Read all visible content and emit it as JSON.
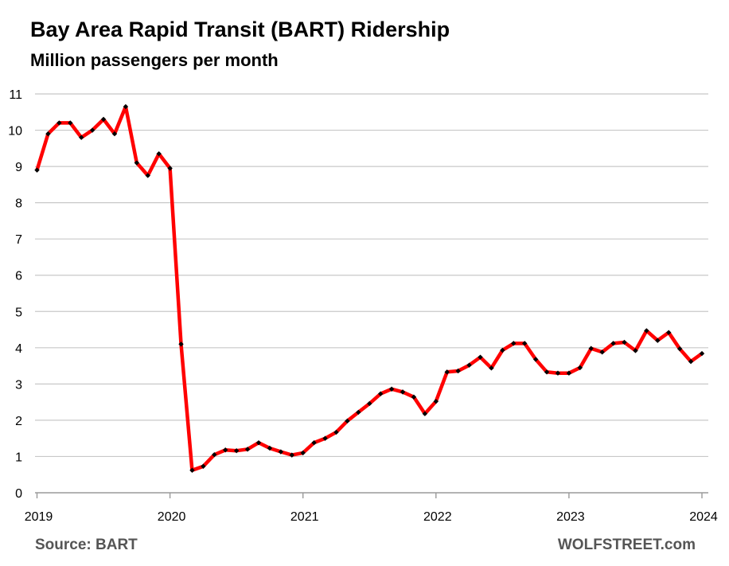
{
  "header": {
    "title": "Bay Area Rapid Transit (BART) Ridership",
    "subtitle": "Million passengers per month"
  },
  "footer": {
    "source": "Source:  BART",
    "brand": "WOLFSTREET.com"
  },
  "chart_data": {
    "type": "line",
    "title": "Bay Area Rapid Transit (BART) Ridership",
    "subtitle": "Million passengers per month",
    "xlabel": "",
    "ylabel": "",
    "ylim": [
      0,
      11
    ],
    "yticks": [
      0,
      1,
      2,
      3,
      4,
      5,
      6,
      7,
      8,
      9,
      10,
      11
    ],
    "xticks": [
      "2019",
      "2020",
      "2021",
      "2022",
      "2023",
      "2024"
    ],
    "x_start": "2019-01",
    "x_end": "2024-01",
    "grid": "horizontal",
    "legend": "none",
    "line_color": "#ff0000",
    "marker_color": "#000000",
    "series": [
      {
        "values": [
          8.9,
          9.9,
          10.2,
          10.2,
          9.8,
          10.0,
          10.3,
          9.9,
          10.65,
          9.1,
          8.75,
          9.35,
          8.95,
          4.1,
          0.62,
          0.73,
          1.05,
          1.18,
          1.16,
          1.2,
          1.38,
          1.23,
          1.13,
          1.04,
          1.1,
          1.38,
          1.5,
          1.67,
          1.98,
          2.22,
          2.46,
          2.73,
          2.86,
          2.78,
          2.64,
          2.18,
          2.52,
          3.33,
          3.36,
          3.52,
          3.74,
          3.44,
          3.93,
          4.12,
          4.12,
          3.68,
          3.33,
          3.3,
          3.3,
          3.45,
          3.98,
          3.88,
          4.12,
          4.15,
          3.92,
          4.47,
          4.2,
          4.42,
          3.97,
          3.62,
          3.84
        ]
      }
    ]
  }
}
